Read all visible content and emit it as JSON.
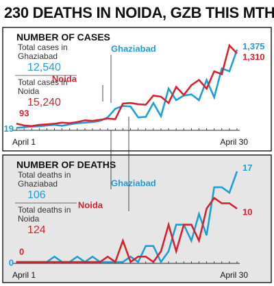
{
  "title": "230 DEATHS IN NOIDA, GZB THIS MTH",
  "chart_data": [
    {
      "type": "line",
      "title": "NUMBER OF CASES",
      "categories": [
        "April 1",
        null,
        null,
        null,
        null,
        null,
        null,
        null,
        null,
        null,
        null,
        null,
        null,
        null,
        null,
        null,
        null,
        null,
        null,
        null,
        null,
        null,
        null,
        null,
        null,
        null,
        null,
        null,
        null,
        "April 30"
      ],
      "ylim": [
        0,
        1500
      ],
      "series": [
        {
          "name": "Ghaziabad",
          "color": "#1b9fd6",
          "total_caption": "Total cases in Ghaziabad",
          "total": "12,540",
          "values": [
            19,
            30,
            40,
            45,
            60,
            70,
            55,
            80,
            100,
            110,
            120,
            140,
            200,
            350,
            400,
            390,
            200,
            210,
            450,
            220,
            700,
            500,
            580,
            600,
            500,
            850,
            550,
            1050,
            1000,
            1375
          ],
          "value_labels": [
            "19",
            null,
            null,
            null,
            null,
            null,
            null,
            null,
            null,
            null,
            null,
            null,
            null,
            null,
            null,
            null,
            null,
            null,
            null,
            null,
            null,
            null,
            null,
            null,
            null,
            null,
            null,
            null,
            null,
            "1,375"
          ]
        },
        {
          "name": "Noida",
          "color": "#d7212e",
          "total_caption": "Total cases in Noida",
          "total": "15,240",
          "values": [
            93,
            60,
            50,
            70,
            80,
            90,
            110,
            100,
            120,
            150,
            140,
            160,
            180,
            170,
            440,
            450,
            430,
            420,
            580,
            560,
            450,
            730,
            590,
            760,
            850,
            700,
            1000,
            950,
            1450,
            1310
          ],
          "value_labels": [
            "93",
            null,
            null,
            null,
            null,
            null,
            null,
            null,
            null,
            null,
            null,
            null,
            null,
            null,
            null,
            null,
            null,
            null,
            null,
            null,
            null,
            null,
            null,
            null,
            null,
            null,
            null,
            null,
            null,
            "1,310"
          ]
        }
      ]
    },
    {
      "type": "line",
      "title": "NUMBER OF DEATHS",
      "categories": [
        "April 1",
        null,
        null,
        null,
        null,
        null,
        null,
        null,
        null,
        null,
        null,
        null,
        null,
        null,
        null,
        null,
        null,
        null,
        null,
        null,
        null,
        null,
        null,
        null,
        null,
        null,
        null,
        null,
        null,
        "April 30"
      ],
      "ylim": [
        0,
        18
      ],
      "series": [
        {
          "name": "Ghaziabad",
          "color": "#1b9fd6",
          "total_caption": "Total deaths in Ghaziabad",
          "total": "106",
          "values": [
            0,
            0,
            0,
            0,
            0,
            1,
            0,
            0,
            1,
            0,
            1,
            0,
            0,
            0,
            0,
            1,
            0,
            3,
            3,
            0,
            2,
            7,
            7,
            4,
            9,
            5,
            14,
            14,
            13,
            17
          ],
          "value_labels": [
            "0",
            null,
            null,
            null,
            null,
            null,
            null,
            null,
            null,
            null,
            null,
            null,
            null,
            null,
            null,
            null,
            null,
            null,
            null,
            null,
            null,
            null,
            null,
            null,
            null,
            null,
            null,
            null,
            null,
            "17"
          ]
        },
        {
          "name": "Noida",
          "color": "#d7212e",
          "total_caption": "Total deaths in Noida",
          "total": "124",
          "values": [
            0,
            0,
            0,
            0,
            0,
            0,
            0,
            0,
            0,
            0,
            0,
            0,
            1,
            0,
            4,
            0,
            1,
            1,
            0,
            2,
            7,
            2,
            7,
            7,
            4,
            10,
            12,
            11,
            11,
            10
          ],
          "value_labels": [
            "0",
            null,
            null,
            null,
            null,
            null,
            null,
            null,
            null,
            null,
            null,
            null,
            null,
            null,
            null,
            null,
            null,
            null,
            null,
            null,
            null,
            null,
            null,
            null,
            null,
            null,
            null,
            null,
            null,
            "10"
          ]
        }
      ]
    }
  ]
}
